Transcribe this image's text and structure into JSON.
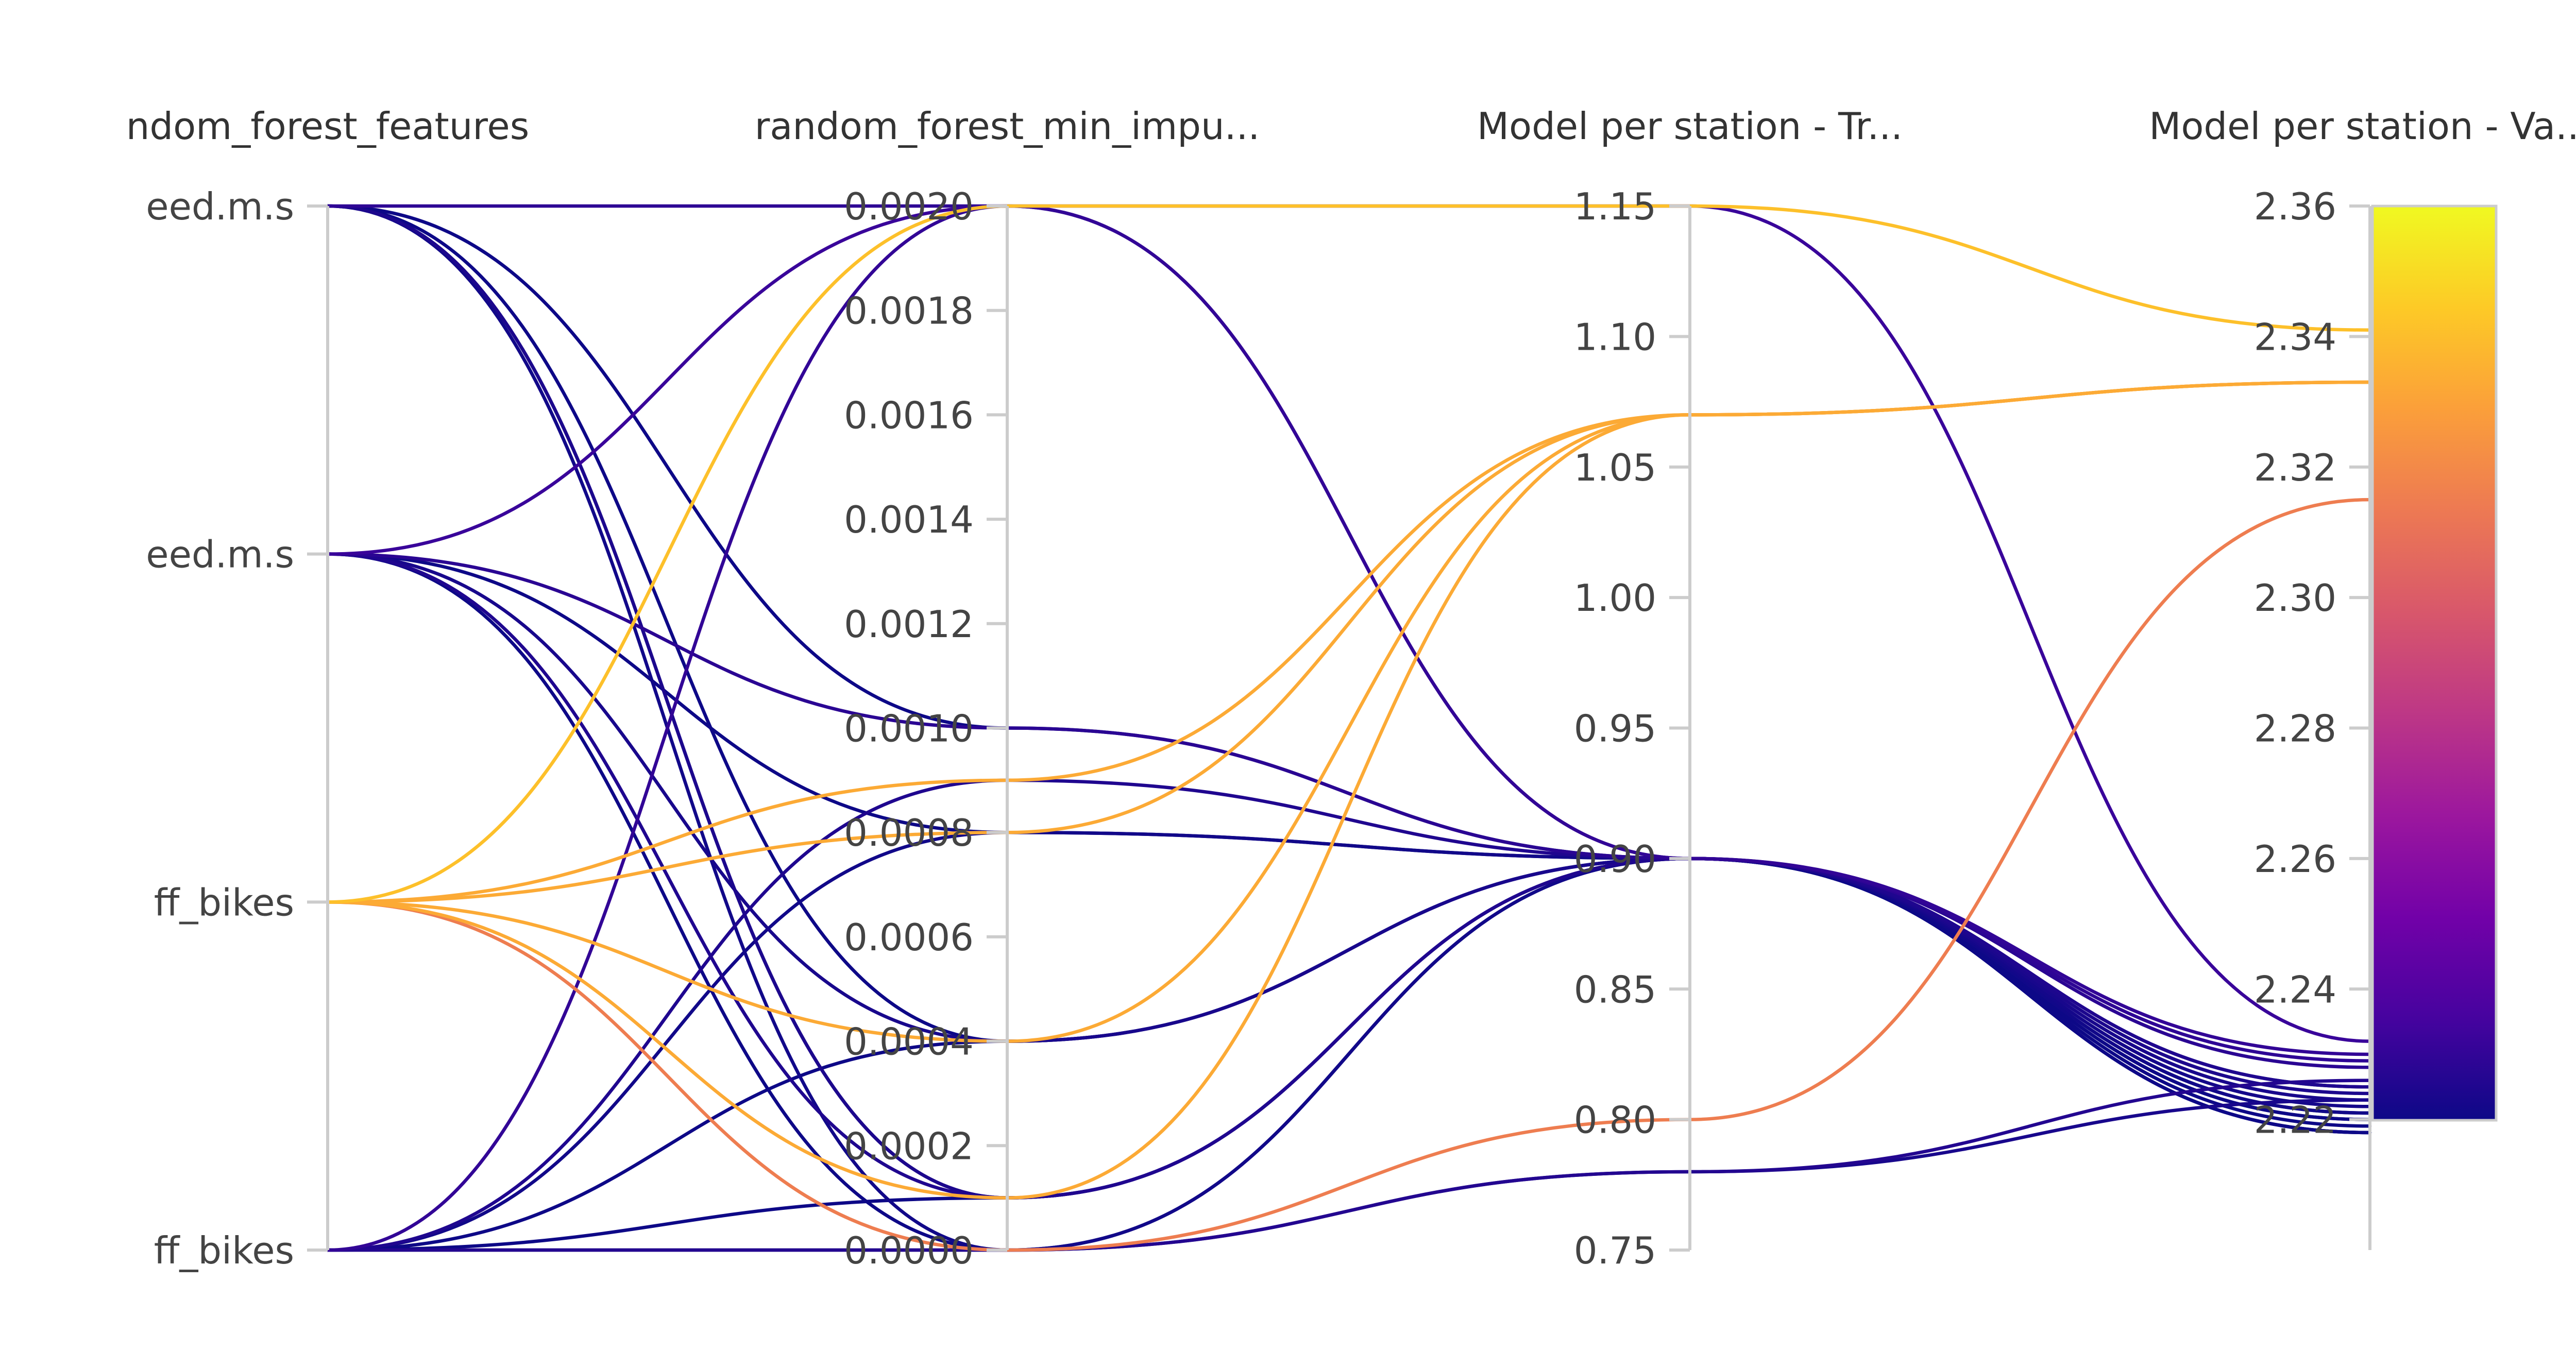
{
  "chart_data": {
    "type": "parallel-coordinates",
    "axes": [
      {
        "title": "ndom_forest_features",
        "kind": "categorical",
        "categories": [
          "eed.m.s",
          "eed.m.s",
          "ff_bikes",
          "ff_bikes"
        ]
      },
      {
        "title": "random_forest_min_impu...",
        "kind": "numeric",
        "range": [
          0,
          0.002
        ],
        "ticks": [
          {
            "value": 0,
            "label": "0.0000"
          },
          {
            "value": 0.0002,
            "label": "0.0002"
          },
          {
            "value": 0.0004,
            "label": "0.0004"
          },
          {
            "value": 0.0006,
            "label": "0.0006"
          },
          {
            "value": 0.0008,
            "label": "0.0008"
          },
          {
            "value": 0.001,
            "label": "0.0010"
          },
          {
            "value": 0.0012,
            "label": "0.0012"
          },
          {
            "value": 0.0014,
            "label": "0.0014"
          },
          {
            "value": 0.0016,
            "label": "0.0016"
          },
          {
            "value": 0.0018,
            "label": "0.0018"
          },
          {
            "value": 0.002,
            "label": "0.0020"
          }
        ]
      },
      {
        "title": "Model per station - Tr...",
        "kind": "numeric",
        "range": [
          0.75,
          1.15
        ],
        "ticks": [
          {
            "value": 0.75,
            "label": "0.75"
          },
          {
            "value": 0.8,
            "label": "0.80"
          },
          {
            "value": 0.85,
            "label": "0.85"
          },
          {
            "value": 0.9,
            "label": "0.90"
          },
          {
            "value": 0.95,
            "label": "0.95"
          },
          {
            "value": 1.0,
            "label": "1.00"
          },
          {
            "value": 1.05,
            "label": "1.05"
          },
          {
            "value": 1.1,
            "label": "1.10"
          },
          {
            "value": 1.15,
            "label": "1.15"
          }
        ]
      },
      {
        "title": "Model per station - Va...",
        "kind": "numeric",
        "range": [
          2.2,
          2.36
        ],
        "ticks": [
          {
            "value": 2.22,
            "label": "2.22"
          },
          {
            "value": 2.24,
            "label": "2.24"
          },
          {
            "value": 2.26,
            "label": "2.26"
          },
          {
            "value": 2.28,
            "label": "2.28"
          },
          {
            "value": 2.3,
            "label": "2.30"
          },
          {
            "value": 2.32,
            "label": "2.32"
          },
          {
            "value": 2.34,
            "label": "2.34"
          },
          {
            "value": 2.36,
            "label": "2.36"
          }
        ]
      }
    ],
    "colorbar": {
      "range": [
        2.22,
        2.36
      ],
      "colorscale": [
        "#0d0887",
        "#46039f",
        "#7201a8",
        "#9c179e",
        "#bd3786",
        "#d8576b",
        "#ed7953",
        "#fb9f3a",
        "#fdca26",
        "#f0f921"
      ]
    },
    "runs": [
      {
        "features": 0,
        "min_impurity": 0.002,
        "train": 0.9,
        "val": 2.229
      },
      {
        "features": 0,
        "min_impurity": 0.001,
        "train": 0.9,
        "val": 2.22
      },
      {
        "features": 0,
        "min_impurity": 0.0004,
        "train": 0.9,
        "val": 2.218
      },
      {
        "features": 0,
        "min_impurity": 0.0001,
        "train": 0.9,
        "val": 2.222
      },
      {
        "features": 0,
        "min_impurity": 0.0001,
        "train": 0.9,
        "val": 2.224
      },
      {
        "features": 0,
        "min_impurity": 0.0,
        "train": 0.9,
        "val": 2.221
      },
      {
        "features": 1,
        "min_impurity": 0.002,
        "train": 1.15,
        "val": 2.232
      },
      {
        "features": 1,
        "min_impurity": 0.001,
        "train": 0.9,
        "val": 2.228
      },
      {
        "features": 1,
        "min_impurity": 0.0008,
        "train": 0.9,
        "val": 2.218
      },
      {
        "features": 1,
        "min_impurity": 0.0004,
        "train": 0.9,
        "val": 2.223
      },
      {
        "features": 1,
        "min_impurity": 0.0001,
        "train": 0.9,
        "val": 2.225
      },
      {
        "features": 1,
        "min_impurity": 0.0,
        "train": 0.9,
        "val": 2.219
      },
      {
        "features": 2,
        "min_impurity": 0.002,
        "train": 1.15,
        "val": 2.341
      },
      {
        "features": 2,
        "min_impurity": 0.0008,
        "train": 1.07,
        "val": 2.333
      },
      {
        "features": 2,
        "min_impurity": 0.0009,
        "train": 1.07,
        "val": 2.333
      },
      {
        "features": 2,
        "min_impurity": 0.0004,
        "train": 1.07,
        "val": 2.333
      },
      {
        "features": 2,
        "min_impurity": 0.0001,
        "train": 1.07,
        "val": 2.333
      },
      {
        "features": 2,
        "min_impurity": 0.0,
        "train": 0.8,
        "val": 2.315
      },
      {
        "features": 3,
        "min_impurity": 0.002,
        "train": 0.9,
        "val": 2.23
      },
      {
        "features": 3,
        "min_impurity": 0.0009,
        "train": 0.9,
        "val": 2.225
      },
      {
        "features": 3,
        "min_impurity": 0.0008,
        "train": 0.9,
        "val": 2.221
      },
      {
        "features": 3,
        "min_impurity": 0.0004,
        "train": 0.9,
        "val": 2.218
      },
      {
        "features": 3,
        "min_impurity": 0.0001,
        "train": 0.9,
        "val": 2.22
      },
      {
        "features": 3,
        "min_impurity": 0.0,
        "train": 0.78,
        "val": 2.226
      },
      {
        "features": 3,
        "min_impurity": 0.0,
        "train": 0.78,
        "val": 2.223
      }
    ]
  }
}
